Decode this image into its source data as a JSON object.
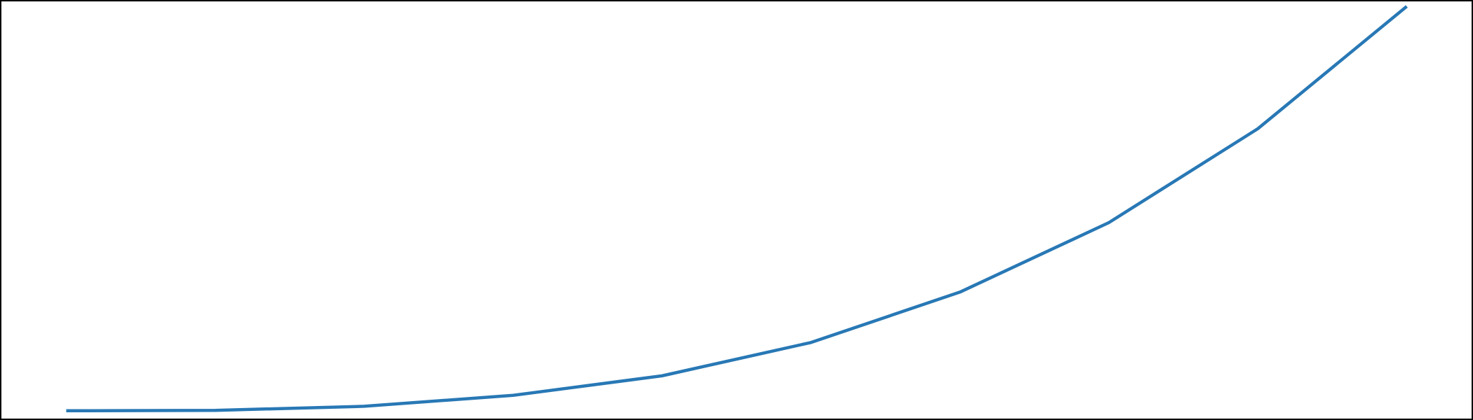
{
  "chart_data": {
    "type": "line",
    "title": "",
    "xlabel": "",
    "ylabel": "",
    "grid": false,
    "axes_visible": false,
    "x": [
      1,
      2,
      3,
      4,
      5,
      6,
      7,
      8,
      9,
      10
    ],
    "xlim": [
      0.56,
      10.44
    ],
    "ylim": [
      -20,
      1010
    ],
    "series": [
      {
        "color": "#2878b5",
        "values": [
          1,
          2,
          12,
          39,
          87,
          169,
          293,
          464,
          695,
          996
        ]
      }
    ]
  }
}
